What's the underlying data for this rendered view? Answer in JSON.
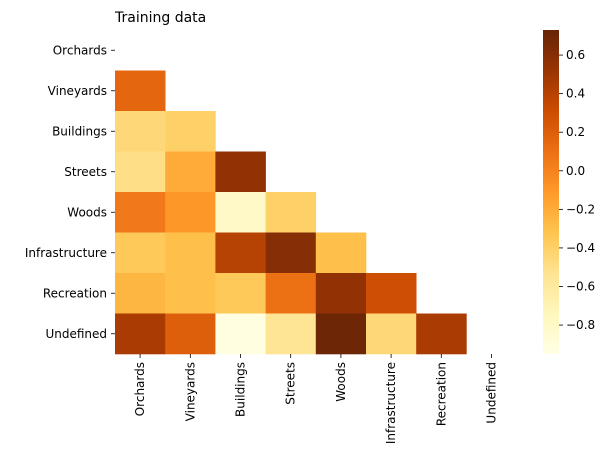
{
  "chart_data": {
    "type": "heatmap",
    "title": "Training data",
    "xlabel": "",
    "ylabel": "",
    "rows": [
      "Orchards",
      "Vineyards",
      "Buildings",
      "Streets",
      "Woods",
      "Infrastructure",
      "Recreation",
      "Undefined"
    ],
    "cols": [
      "Orchards",
      "Vineyards",
      "Buildings",
      "Streets",
      "Woods",
      "Infrastructure",
      "Recreation",
      "Undefined"
    ],
    "mask": "upper-triangle-including-diagonal",
    "values": [
      [
        null,
        null,
        null,
        null,
        null,
        null,
        null,
        null
      ],
      [
        0.15,
        null,
        null,
        null,
        null,
        null,
        null,
        null
      ],
      [
        -0.45,
        -0.4,
        null,
        null,
        null,
        null,
        null,
        null
      ],
      [
        -0.5,
        -0.2,
        0.55,
        null,
        null,
        null,
        null,
        null
      ],
      [
        0.05,
        -0.1,
        -0.8,
        -0.4,
        null,
        null,
        null,
        null
      ],
      [
        -0.35,
        -0.3,
        0.4,
        0.6,
        -0.3,
        null,
        null,
        null
      ],
      [
        -0.25,
        -0.3,
        -0.35,
        0.1,
        0.55,
        0.3,
        null,
        null
      ],
      [
        0.45,
        0.2,
        -0.93,
        -0.55,
        0.7,
        -0.45,
        0.45,
        null
      ]
    ],
    "colorbar": {
      "colormap": "YlOrBr",
      "range": [
        -0.95,
        0.73
      ],
      "ticks": [
        0.6,
        0.4,
        0.2,
        0.0,
        -0.2,
        -0.4,
        -0.6,
        -0.8
      ],
      "tick_labels": [
        "0.6",
        "0.4",
        "0.2",
        "0.0",
        "−0.2",
        "−0.4",
        "−0.6",
        "−0.8"
      ]
    }
  }
}
